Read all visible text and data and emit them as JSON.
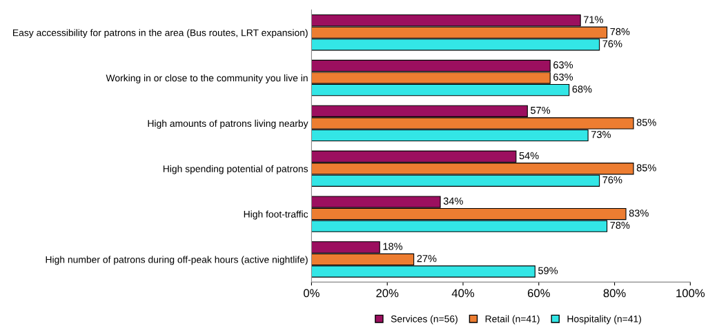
{
  "chart_data": {
    "type": "bar",
    "orientation": "horizontal",
    "categories": [
      "Easy accessibility for patrons in the area (Bus routes, LRT expansion)",
      "Working in or close to the community you live in",
      "High amounts of patrons living nearby",
      "High spending potential of patrons",
      "High foot-traffic",
      "High number of patrons during off-peak hours (active nightlife)"
    ],
    "series": [
      {
        "name": "Services (n=56)",
        "color": "#9c0f5f",
        "values": [
          71,
          63,
          57,
          54,
          34,
          18
        ],
        "value_labels": [
          "71%",
          "63%",
          "57%",
          "54%",
          "34%",
          "18%"
        ]
      },
      {
        "name": "Retail (n=41)",
        "color": "#ed7d31",
        "values": [
          78,
          63,
          85,
          85,
          83,
          27
        ],
        "value_labels": [
          "78%",
          "63%",
          "85%",
          "85%",
          "83%",
          "27%"
        ]
      },
      {
        "name": "Hospitality (n=41)",
        "color": "#33e6e6",
        "values": [
          76,
          68,
          73,
          76,
          78,
          59
        ],
        "value_labels": [
          "76%",
          "68%",
          "73%",
          "76%",
          "78%",
          "59%"
        ]
      }
    ],
    "xlim": [
      0,
      100
    ],
    "xticks": [
      {
        "value": 0,
        "label": "0%"
      },
      {
        "value": 20,
        "label": "20%"
      },
      {
        "value": 40,
        "label": "40%"
      },
      {
        "value": 60,
        "label": "60%"
      },
      {
        "value": 80,
        "label": "80%"
      },
      {
        "value": 100,
        "label": "100%"
      }
    ],
    "grid": false,
    "legend": "bottom"
  }
}
